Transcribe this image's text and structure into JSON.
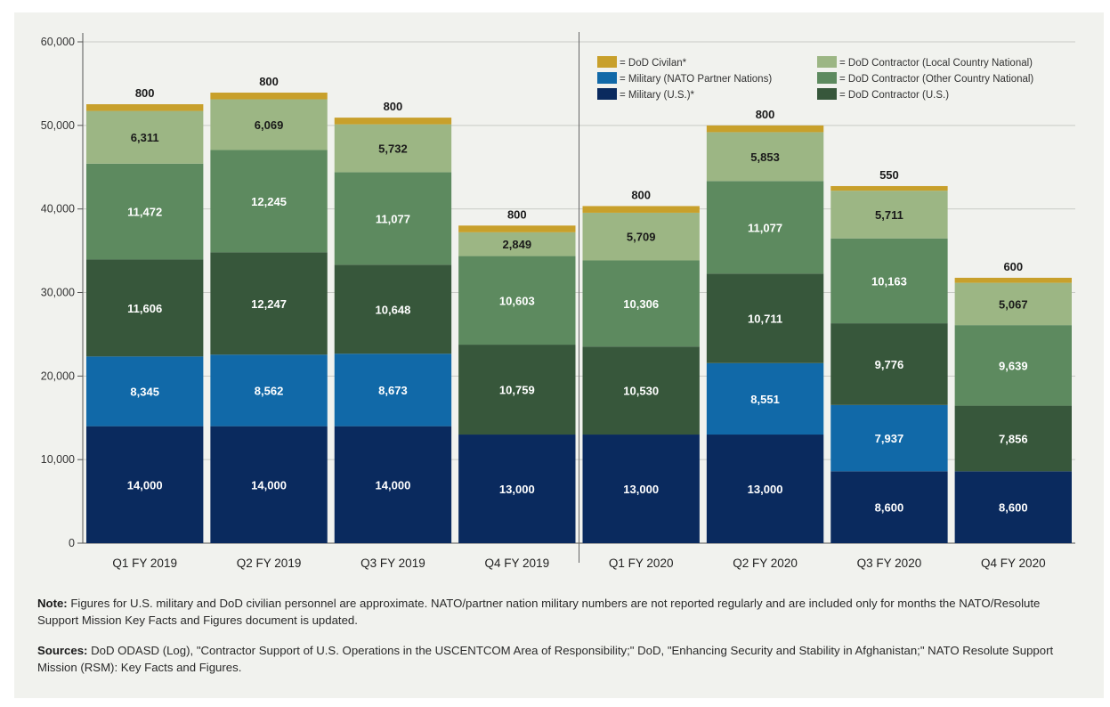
{
  "chart_data": {
    "type": "bar",
    "stacked": true,
    "categories": [
      "Q1 FY 2019",
      "Q2 FY 2019",
      "Q3 FY 2019",
      "Q4 FY 2019",
      "Q1 FY 2020",
      "Q2 FY 2020",
      "Q3 FY 2020",
      "Q4 FY 2020"
    ],
    "ylim": [
      0,
      60000
    ],
    "yticks": [
      "0",
      "10,000",
      "20,000",
      "30,000",
      "40,000",
      "50,000",
      "60,000"
    ],
    "grid": true,
    "legend_position": "top-right",
    "stacks": [
      [
        {
          "series": "Military (U.S.)*",
          "value": 14000,
          "label": "14,000"
        },
        {
          "series": "Military (NATO Partner Nations)",
          "value": 8345,
          "label": "8,345"
        },
        {
          "series": "DoD Contractor (U.S.)",
          "value": 11606,
          "label": "11,606"
        },
        {
          "series": "DoD Contractor (Other Country National)",
          "value": 11472,
          "label": "11,472"
        },
        {
          "series": "DoD Contractor (Local Country National)",
          "value": 6311,
          "label": "6,311"
        },
        {
          "series": "DoD Civilan*",
          "value": 800,
          "label": "800"
        }
      ],
      [
        {
          "series": "Military (U.S.)*",
          "value": 14000,
          "label": "14,000"
        },
        {
          "series": "Military (NATO Partner Nations)",
          "value": 8562,
          "label": "8,562"
        },
        {
          "series": "DoD Contractor (U.S.)",
          "value": 12247,
          "label": "12,247"
        },
        {
          "series": "DoD Contractor (Other Country National)",
          "value": 12245,
          "label": "12,245"
        },
        {
          "series": "DoD Contractor (Local Country National)",
          "value": 6069,
          "label": "6,069"
        },
        {
          "series": "DoD Civilan*",
          "value": 800,
          "label": "800"
        }
      ],
      [
        {
          "series": "Military (U.S.)*",
          "value": 14000,
          "label": "14,000"
        },
        {
          "series": "Military (NATO Partner Nations)",
          "value": 8673,
          "label": "8,673"
        },
        {
          "series": "DoD Contractor (U.S.)",
          "value": 10648,
          "label": "10,648"
        },
        {
          "series": "DoD Contractor (Other Country National)",
          "value": 11077,
          "label": "11,077"
        },
        {
          "series": "DoD Contractor (Local Country National)",
          "value": 5732,
          "label": "5,732"
        },
        {
          "series": "DoD Civilan*",
          "value": 800,
          "label": "800"
        }
      ],
      [
        {
          "series": "Military (U.S.)*",
          "value": 13000,
          "label": "13,000"
        },
        {
          "series": "DoD Contractor (U.S.)",
          "value": 10759,
          "label": "10,759"
        },
        {
          "series": "DoD Contractor (Other Country National)",
          "value": 10603,
          "label": "10,603"
        },
        {
          "series": "DoD Contractor (Local Country National)",
          "value": 2849,
          "label": "2,849"
        },
        {
          "series": "DoD Civilan*",
          "value": 800,
          "label": "800"
        }
      ],
      [
        {
          "series": "Military (U.S.)*",
          "value": 13000,
          "label": "13,000"
        },
        {
          "series": "DoD Contractor (U.S.)",
          "value": 10530,
          "label": "10,530"
        },
        {
          "series": "DoD Contractor (Other Country National)",
          "value": 10306,
          "label": "10,306"
        },
        {
          "series": "DoD Contractor (Local Country National)",
          "value": 5709,
          "label": "5,709"
        },
        {
          "series": "DoD Civilan*",
          "value": 800,
          "label": "800"
        }
      ],
      [
        {
          "series": "Military (U.S.)*",
          "value": 13000,
          "label": "13,000"
        },
        {
          "series": "Military (NATO Partner Nations)",
          "value": 8551,
          "label": "8,551"
        },
        {
          "series": "DoD Contractor (U.S.)",
          "value": 10711,
          "label": "10,711"
        },
        {
          "series": "DoD Contractor (Other Country National)",
          "value": 11077,
          "label": "11,077"
        },
        {
          "series": "DoD Contractor (Local Country National)",
          "value": 5853,
          "label": "5,853"
        },
        {
          "series": "DoD Civilan*",
          "value": 800,
          "label": "800"
        }
      ],
      [
        {
          "series": "Military (U.S.)*",
          "value": 8600,
          "label": "8,600"
        },
        {
          "series": "Military (NATO Partner Nations)",
          "value": 7937,
          "label": "7,937"
        },
        {
          "series": "DoD Contractor (U.S.)",
          "value": 9776,
          "label": "9,776"
        },
        {
          "series": "DoD Contractor (Other Country National)",
          "value": 10163,
          "label": "10,163"
        },
        {
          "series": "DoD Contractor (Local Country National)",
          "value": 5711,
          "label": "5,711"
        },
        {
          "series": "DoD Civilan*",
          "value": 550,
          "label": "550"
        }
      ],
      [
        {
          "series": "Military (U.S.)*",
          "value": 8600,
          "label": "8,600"
        },
        {
          "series": "DoD Contractor (U.S.)",
          "value": 7856,
          "label": "7,856"
        },
        {
          "series": "DoD Contractor (Other Country National)",
          "value": 9639,
          "label": "9,639"
        },
        {
          "series": "DoD Contractor (Local Country National)",
          "value": 5067,
          "label": "5,067"
        },
        {
          "series": "DoD Civilan*",
          "value": 600,
          "label": "600"
        }
      ]
    ],
    "legend": [
      {
        "label": "= DoD Civilan*",
        "series": "DoD Civilan*"
      },
      {
        "label": "= DoD Contractor (Local Country National)",
        "series": "DoD Contractor (Local Country National)"
      },
      {
        "label": "= Military (NATO Partner Nations)",
        "series": "Military (NATO Partner Nations)"
      },
      {
        "label": "= DoD Contractor (Other Country National)",
        "series": "DoD Contractor (Other Country National)"
      },
      {
        "label": "= Military (U.S.)*",
        "series": "Military (U.S.)*"
      },
      {
        "label": "= DoD Contractor (U.S.)",
        "series": "DoD Contractor (U.S.)"
      }
    ],
    "colors": {
      "Military (U.S.)*": "#0a2a5e",
      "Military (NATO Partner Nations)": "#1169a8",
      "DoD Contractor (U.S.)": "#37573b",
      "DoD Contractor (Other Country National)": "#5d8a5f",
      "DoD Contractor (Local Country National)": "#9cb684",
      "DoD Civilan*": "#c8a02b"
    }
  },
  "footnotes": {
    "note_label": "Note:",
    "note_text": " Figures for U.S. military and DoD civilian personnel are approximate. NATO/partner nation military numbers are not reported regularly and are included only for months the NATO/Resolute Support Mission Key Facts and Figures document is updated.",
    "sources_label": "Sources:",
    "sources_text": " DoD ODASD (Log), \"Contractor Support of U.S. Operations in the USCENTCOM Area of Responsibility;\" DoD, \"Enhancing Security and Stability in Afghanistan;\" NATO Resolute Support Mission (RSM): Key Facts and Figures."
  }
}
